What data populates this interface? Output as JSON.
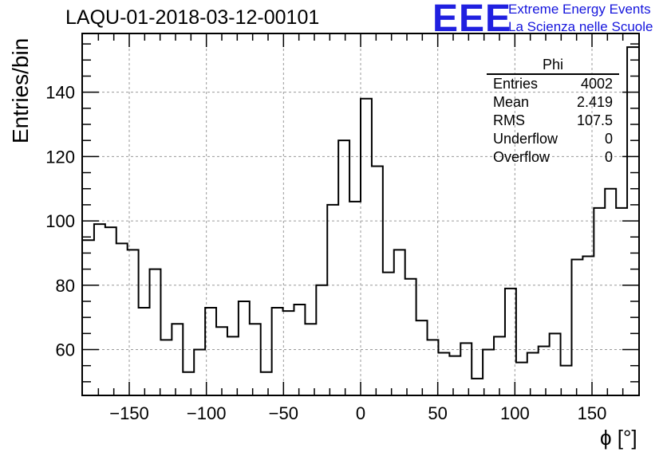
{
  "title": "LAQU-01-2018-03-12-00101",
  "branding": {
    "logo": "EEE",
    "line1": "Extreme Energy Events",
    "line2": "La Scienza nelle Scuole",
    "color": "#1a1ae6"
  },
  "stats": {
    "name": "Phi",
    "rows": [
      {
        "label": "Entries",
        "value": "4002"
      },
      {
        "label": "Mean",
        "value": "2.419"
      },
      {
        "label": "RMS",
        "value": "107.5"
      },
      {
        "label": "Underflow",
        "value": "0"
      },
      {
        "label": "Overflow",
        "value": "0"
      }
    ]
  },
  "chart_data": {
    "type": "histogram",
    "title": "LAQU-01-2018-03-12-00101",
    "xlabel": "ϕ [°]",
    "ylabel": "Entries/bin",
    "xlim": [
      -180,
      180
    ],
    "ylim": [
      46,
      158
    ],
    "bin_width": 7.2,
    "bin_edges_start": -180,
    "values": [
      94,
      99,
      98,
      93,
      91,
      73,
      85,
      63,
      68,
      53,
      60,
      73,
      67,
      64,
      75,
      68,
      53,
      73,
      72,
      74,
      68,
      80,
      105,
      125,
      106,
      138,
      117,
      84,
      91,
      82,
      69,
      63,
      59,
      58,
      62,
      51,
      60,
      64,
      79,
      56,
      59,
      61,
      65,
      55,
      88,
      89,
      104,
      110,
      104,
      154
    ],
    "x_ticks": [
      -150,
      -100,
      -50,
      0,
      50,
      100,
      150
    ],
    "x_tick_labels": [
      "−150",
      "−100",
      "−50",
      "0",
      "50",
      "100",
      "150"
    ],
    "y_ticks": [
      60,
      80,
      100,
      120,
      140
    ],
    "y_tick_labels": [
      "60",
      "80",
      "100",
      "120",
      "140"
    ],
    "grid": true,
    "line_color": "#000000"
  }
}
